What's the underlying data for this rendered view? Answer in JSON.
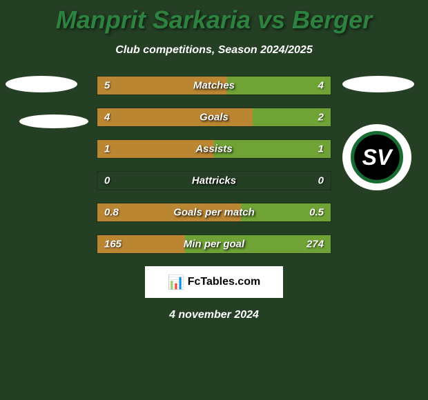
{
  "title": "Manprit Sarkaria vs Berger",
  "subtitle": "Club competitions, Season 2024/2025",
  "date": "4 november 2024",
  "watermark": "FcTables.com",
  "colors": {
    "background": "#243f24",
    "title": "#2e8240",
    "text": "#ffffff",
    "bar_left": "#bb8632",
    "bar_right": "#6fa336"
  },
  "right_badge_text": "SV",
  "bars": [
    {
      "label": "Matches",
      "left_val": "5",
      "right_val": "4",
      "left_pct": 55.6,
      "right_pct": 44.4
    },
    {
      "label": "Goals",
      "left_val": "4",
      "right_val": "2",
      "left_pct": 66.7,
      "right_pct": 33.3
    },
    {
      "label": "Assists",
      "left_val": "1",
      "right_val": "1",
      "left_pct": 50.0,
      "right_pct": 50.0
    },
    {
      "label": "Hattricks",
      "left_val": "0",
      "right_val": "0",
      "left_pct": 0,
      "right_pct": 0
    },
    {
      "label": "Goals per match",
      "left_val": "0.8",
      "right_val": "0.5",
      "left_pct": 61.5,
      "right_pct": 38.5
    },
    {
      "label": "Min per goal",
      "left_val": "165",
      "right_val": "274",
      "left_pct": 37.6,
      "right_pct": 62.4
    }
  ]
}
